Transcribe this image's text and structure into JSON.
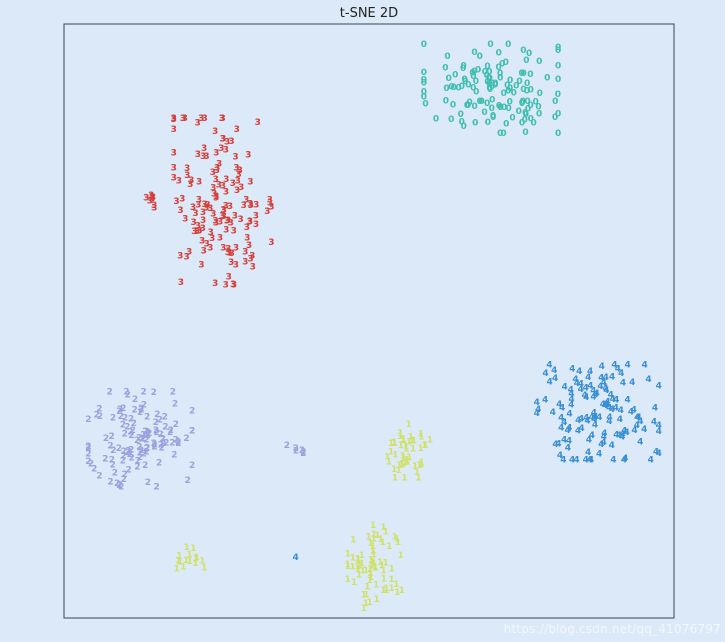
{
  "chart_data": {
    "type": "scatter",
    "title": "t-SNE 2D",
    "xlabel": "",
    "ylabel": "",
    "xlim": [
      0,
      100
    ],
    "ylim": [
      0,
      100
    ],
    "grid": false,
    "axis_ticks": false,
    "marker": "digit label",
    "series": [
      {
        "label": "0",
        "color": "#3ebdb0",
        "clusters": [
          {
            "cx": 70.0,
            "cy": 89.0,
            "rx": 11.0,
            "ry": 7.5,
            "count": 130
          }
        ]
      },
      {
        "label": "1",
        "color": "#cfe16a",
        "clusters": [
          {
            "cx": 56.5,
            "cy": 28.0,
            "rx": 3.5,
            "ry": 4.5,
            "count": 45
          },
          {
            "cx": 51.0,
            "cy": 8.5,
            "rx": 4.5,
            "ry": 7.0,
            "count": 70
          },
          {
            "cx": 20.5,
            "cy": 10.0,
            "rx": 2.5,
            "ry": 1.8,
            "count": 15
          }
        ]
      },
      {
        "label": "2",
        "color": "#9ba1dd",
        "clusters": [
          {
            "cx": 12.5,
            "cy": 30.0,
            "rx": 8.5,
            "ry": 8.0,
            "count": 120
          },
          {
            "cx": 38.0,
            "cy": 28.5,
            "rx": 1.8,
            "ry": 1.0,
            "count": 6
          }
        ]
      },
      {
        "label": "3",
        "color": "#d43f3a",
        "clusters": [
          {
            "cx": 26.0,
            "cy": 70.0,
            "rx": 8.0,
            "ry": 14.0,
            "count": 140
          },
          {
            "cx": 14.0,
            "cy": 70.0,
            "rx": 1.5,
            "ry": 1.5,
            "count": 8
          }
        ]
      },
      {
        "label": "4",
        "color": "#3a8fd2",
        "clusters": [
          {
            "cx": 87.5,
            "cy": 34.5,
            "rx": 10.0,
            "ry": 8.0,
            "count": 130
          },
          {
            "cx": 38.0,
            "cy": 10.0,
            "rx": 0.3,
            "ry": 0.3,
            "count": 1
          }
        ]
      }
    ]
  },
  "watermark": "https://blog.csdn.net/qq_41076797"
}
